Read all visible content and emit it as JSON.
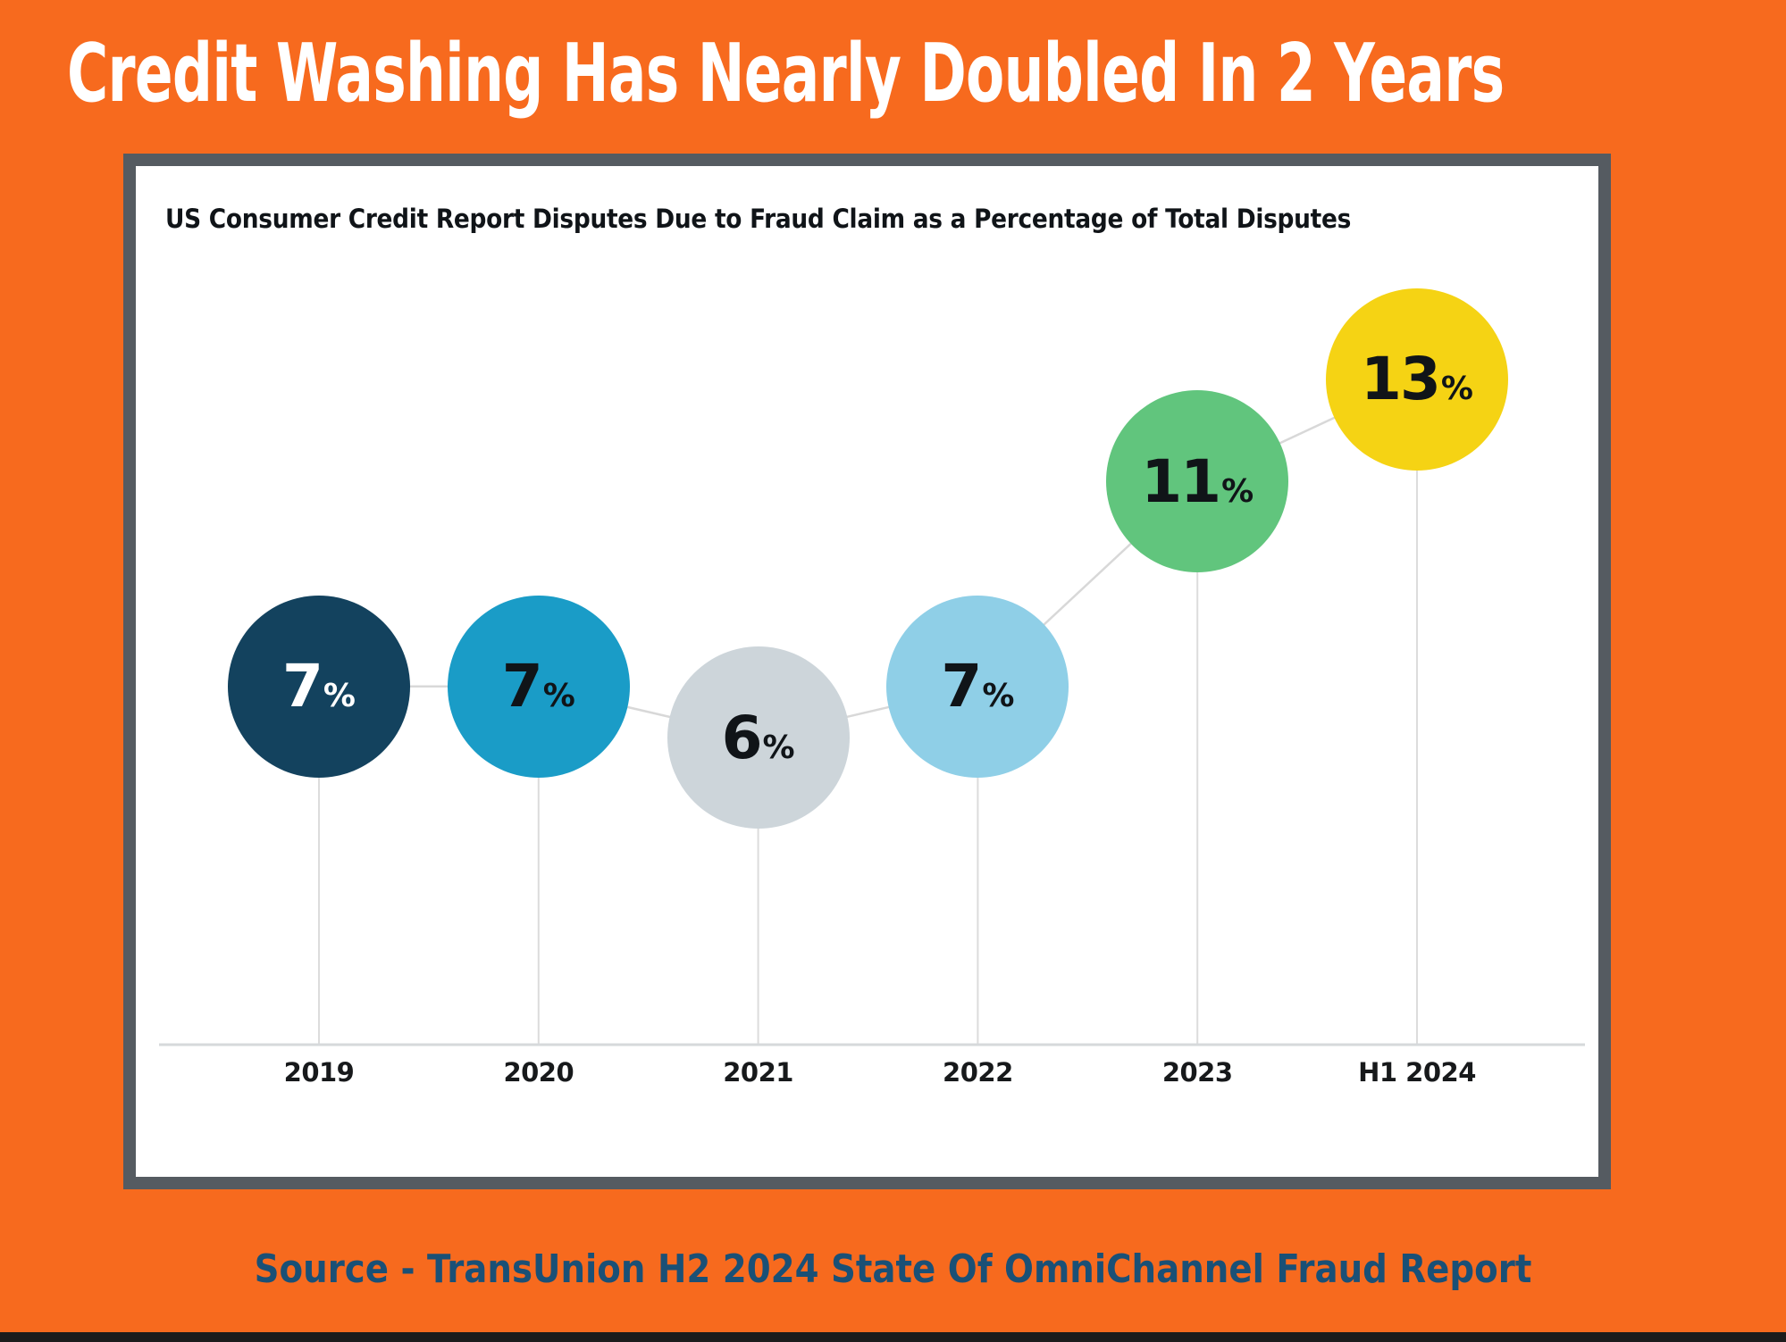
{
  "page": {
    "title": "Credit Washing Has Nearly Doubled In 2 Years",
    "source_line": "Source - TransUnion H2 2024 State Of OmniChannel Fraud Report"
  },
  "chart_data": {
    "type": "scatter",
    "variant": "bubble-trend-line",
    "title": "US Consumer Credit Report Disputes Due to Fraud Claim as a Percentage of Total Disputes",
    "categories": [
      "2019",
      "2020",
      "2021",
      "2022",
      "2023",
      "H1 2024"
    ],
    "values": [
      7,
      7,
      6,
      7,
      11,
      13
    ],
    "value_labels": [
      "7%",
      "7%",
      "6%",
      "7%",
      "11%",
      "13%"
    ],
    "unit": "%",
    "xlabel": "",
    "ylabel": "",
    "ylim": [
      0,
      16
    ],
    "grid": false,
    "legend": "none",
    "point_colors": [
      "#13425E",
      "#1A9CC7",
      "#CDD5DA",
      "#8FCFE7",
      "#61C57D",
      "#F5D314"
    ],
    "point_label_colors": [
      "#FFFFFF",
      "#101418",
      "#101418",
      "#101418",
      "#101418",
      "#101418"
    ],
    "connector_color": "#D8D8D8",
    "drop_line_color": "#DCDCDC",
    "axis_line_color": "#D6D9DB",
    "axis_label_color": "#17191B"
  },
  "colors": {
    "background": "#F76A1E",
    "title_text": "#FFFFFF",
    "panel_background": "#FFFFFF",
    "panel_border": "#555B61",
    "chart_title_text": "#101418",
    "source_text": "#1A5076",
    "bottom_bar": "#1C1C1C"
  }
}
